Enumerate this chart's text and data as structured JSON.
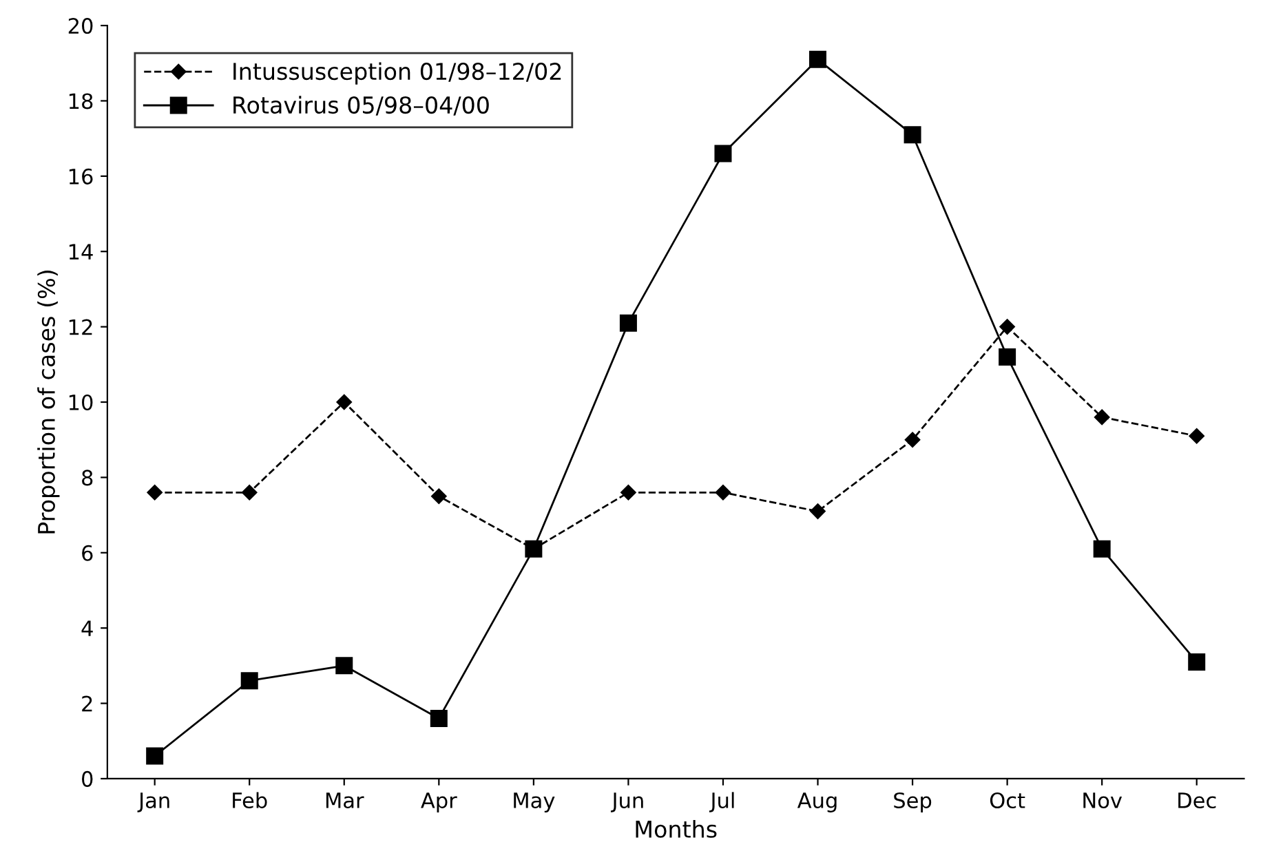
{
  "chart_data": {
    "type": "line",
    "xlabel": "Months",
    "ylabel": "Proportion of cases (%)",
    "categories": [
      "Jan",
      "Feb",
      "Mar",
      "Apr",
      "May",
      "Jun",
      "Jul",
      "Aug",
      "Sep",
      "Oct",
      "Nov",
      "Dec"
    ],
    "series": [
      {
        "name": "Intussusception 01/98–12/02",
        "color": "#000000",
        "marker": "diamond",
        "line_style": "dashed",
        "values": [
          7.6,
          7.6,
          10.0,
          7.5,
          6.1,
          7.6,
          7.6,
          7.1,
          9.0,
          12.0,
          9.6,
          9.1
        ]
      },
      {
        "name": "Rotavirus 05/98–04/00",
        "color": "#000000",
        "marker": "square",
        "line_style": "solid",
        "values": [
          0.6,
          2.6,
          3.0,
          1.6,
          6.1,
          12.1,
          16.6,
          19.1,
          17.1,
          11.2,
          6.1,
          3.1
        ]
      }
    ],
    "ylim": [
      0,
      20
    ],
    "yticks": [
      0,
      2,
      4,
      6,
      8,
      10,
      12,
      14,
      16,
      18,
      20
    ],
    "grid": false,
    "legend": "top left"
  }
}
